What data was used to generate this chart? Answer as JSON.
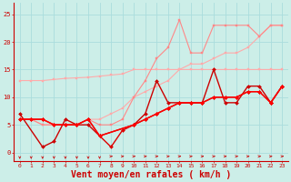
{
  "background_color": "#cceee8",
  "grid_color": "#aadddd",
  "xlabel": "Vent moyen/en rafales ( km/h )",
  "xlabel_color": "#cc0000",
  "xlabel_fontsize": 7,
  "tick_color": "#cc0000",
  "yticks": [
    0,
    5,
    10,
    15,
    20,
    25
  ],
  "xticks": [
    0,
    1,
    2,
    3,
    4,
    5,
    6,
    7,
    8,
    9,
    10,
    11,
    12,
    13,
    14,
    15,
    16,
    17,
    18,
    19,
    20,
    21,
    22,
    23
  ],
  "xlim": [
    -0.5,
    23.5
  ],
  "ylim": [
    -1.5,
    27
  ],
  "series": [
    {
      "x": [
        0,
        1,
        2,
        3,
        4,
        5,
        6,
        7,
        8,
        9,
        10,
        11,
        12,
        13,
        14,
        15,
        16,
        17,
        18,
        19,
        20,
        21,
        22,
        23
      ],
      "y": [
        13,
        13,
        13,
        13.2,
        13.4,
        13.5,
        13.6,
        13.8,
        14,
        14.2,
        15,
        15,
        15,
        15,
        15,
        15,
        15,
        15,
        15,
        15,
        15,
        15,
        15,
        15
      ],
      "color": "#ffaaaa",
      "marker": "s",
      "markersize": 1.5,
      "linewidth": 0.8
    },
    {
      "x": [
        0,
        1,
        2,
        3,
        4,
        5,
        6,
        7,
        8,
        9,
        10,
        11,
        12,
        13,
        14,
        15,
        16,
        17,
        18,
        19,
        20,
        21,
        22,
        23
      ],
      "y": [
        6,
        6,
        5,
        5,
        5,
        5,
        6,
        6,
        7,
        8,
        10,
        11,
        12,
        13,
        15,
        16,
        16,
        17,
        18,
        18,
        19,
        21,
        23,
        23
      ],
      "color": "#ffaaaa",
      "marker": "s",
      "markersize": 1.5,
      "linewidth": 0.8
    },
    {
      "x": [
        0,
        1,
        2,
        3,
        4,
        5,
        6,
        7,
        8,
        9,
        10,
        11,
        12,
        13,
        14,
        15,
        16,
        17,
        18,
        19,
        20,
        21,
        22,
        23
      ],
      "y": [
        6,
        6,
        5,
        5,
        5,
        5,
        6,
        5,
        5,
        6,
        10,
        13,
        17,
        19,
        24,
        18,
        18,
        23,
        23,
        23,
        23,
        21,
        23,
        23
      ],
      "color": "#ff8888",
      "marker": "s",
      "markersize": 1.5,
      "linewidth": 0.8
    },
    {
      "x": [
        0,
        2,
        3,
        4,
        5,
        6,
        7,
        10,
        11,
        12,
        13,
        14,
        15,
        16,
        17,
        18,
        19,
        20,
        21,
        22,
        23
      ],
      "y": [
        7,
        1,
        2,
        6,
        5,
        5,
        3,
        5,
        7,
        13,
        9,
        9,
        9,
        9,
        15,
        9,
        9,
        12,
        12,
        9,
        12
      ],
      "color": "#cc0000",
      "marker": "D",
      "markersize": 2.0,
      "linewidth": 1.0
    },
    {
      "x": [
        0,
        1,
        2,
        3,
        4,
        5,
        6,
        7,
        8,
        9,
        10,
        11,
        12,
        13,
        14,
        15,
        16,
        17,
        18,
        19,
        20,
        21,
        22,
        23
      ],
      "y": [
        6,
        6,
        6,
        5,
        5,
        5,
        6,
        3,
        1,
        4,
        5,
        6,
        7,
        8,
        9,
        9,
        9,
        10,
        10,
        10,
        11,
        11,
        9,
        12
      ],
      "color": "#dd0000",
      "marker": "D",
      "markersize": 2.0,
      "linewidth": 1.0
    },
    {
      "x": [
        0,
        1,
        2,
        3,
        4,
        5,
        6,
        7,
        10,
        11,
        12,
        13,
        14,
        15,
        16,
        17,
        18,
        19,
        20,
        21,
        22,
        23
      ],
      "y": [
        6,
        6,
        6,
        5,
        5,
        5,
        6,
        3,
        5,
        6,
        7,
        8,
        9,
        9,
        9,
        10,
        10,
        10,
        11,
        11,
        9,
        12
      ],
      "color": "#ff0000",
      "marker": "D",
      "markersize": 2.0,
      "linewidth": 1.0
    }
  ],
  "wind_arrows_down": [
    0,
    1,
    2,
    3,
    4,
    5,
    6,
    7
  ],
  "wind_arrows_right": [
    8,
    9,
    10,
    11,
    12,
    13,
    14,
    15,
    16,
    17,
    18,
    19,
    20,
    21,
    22,
    23
  ]
}
